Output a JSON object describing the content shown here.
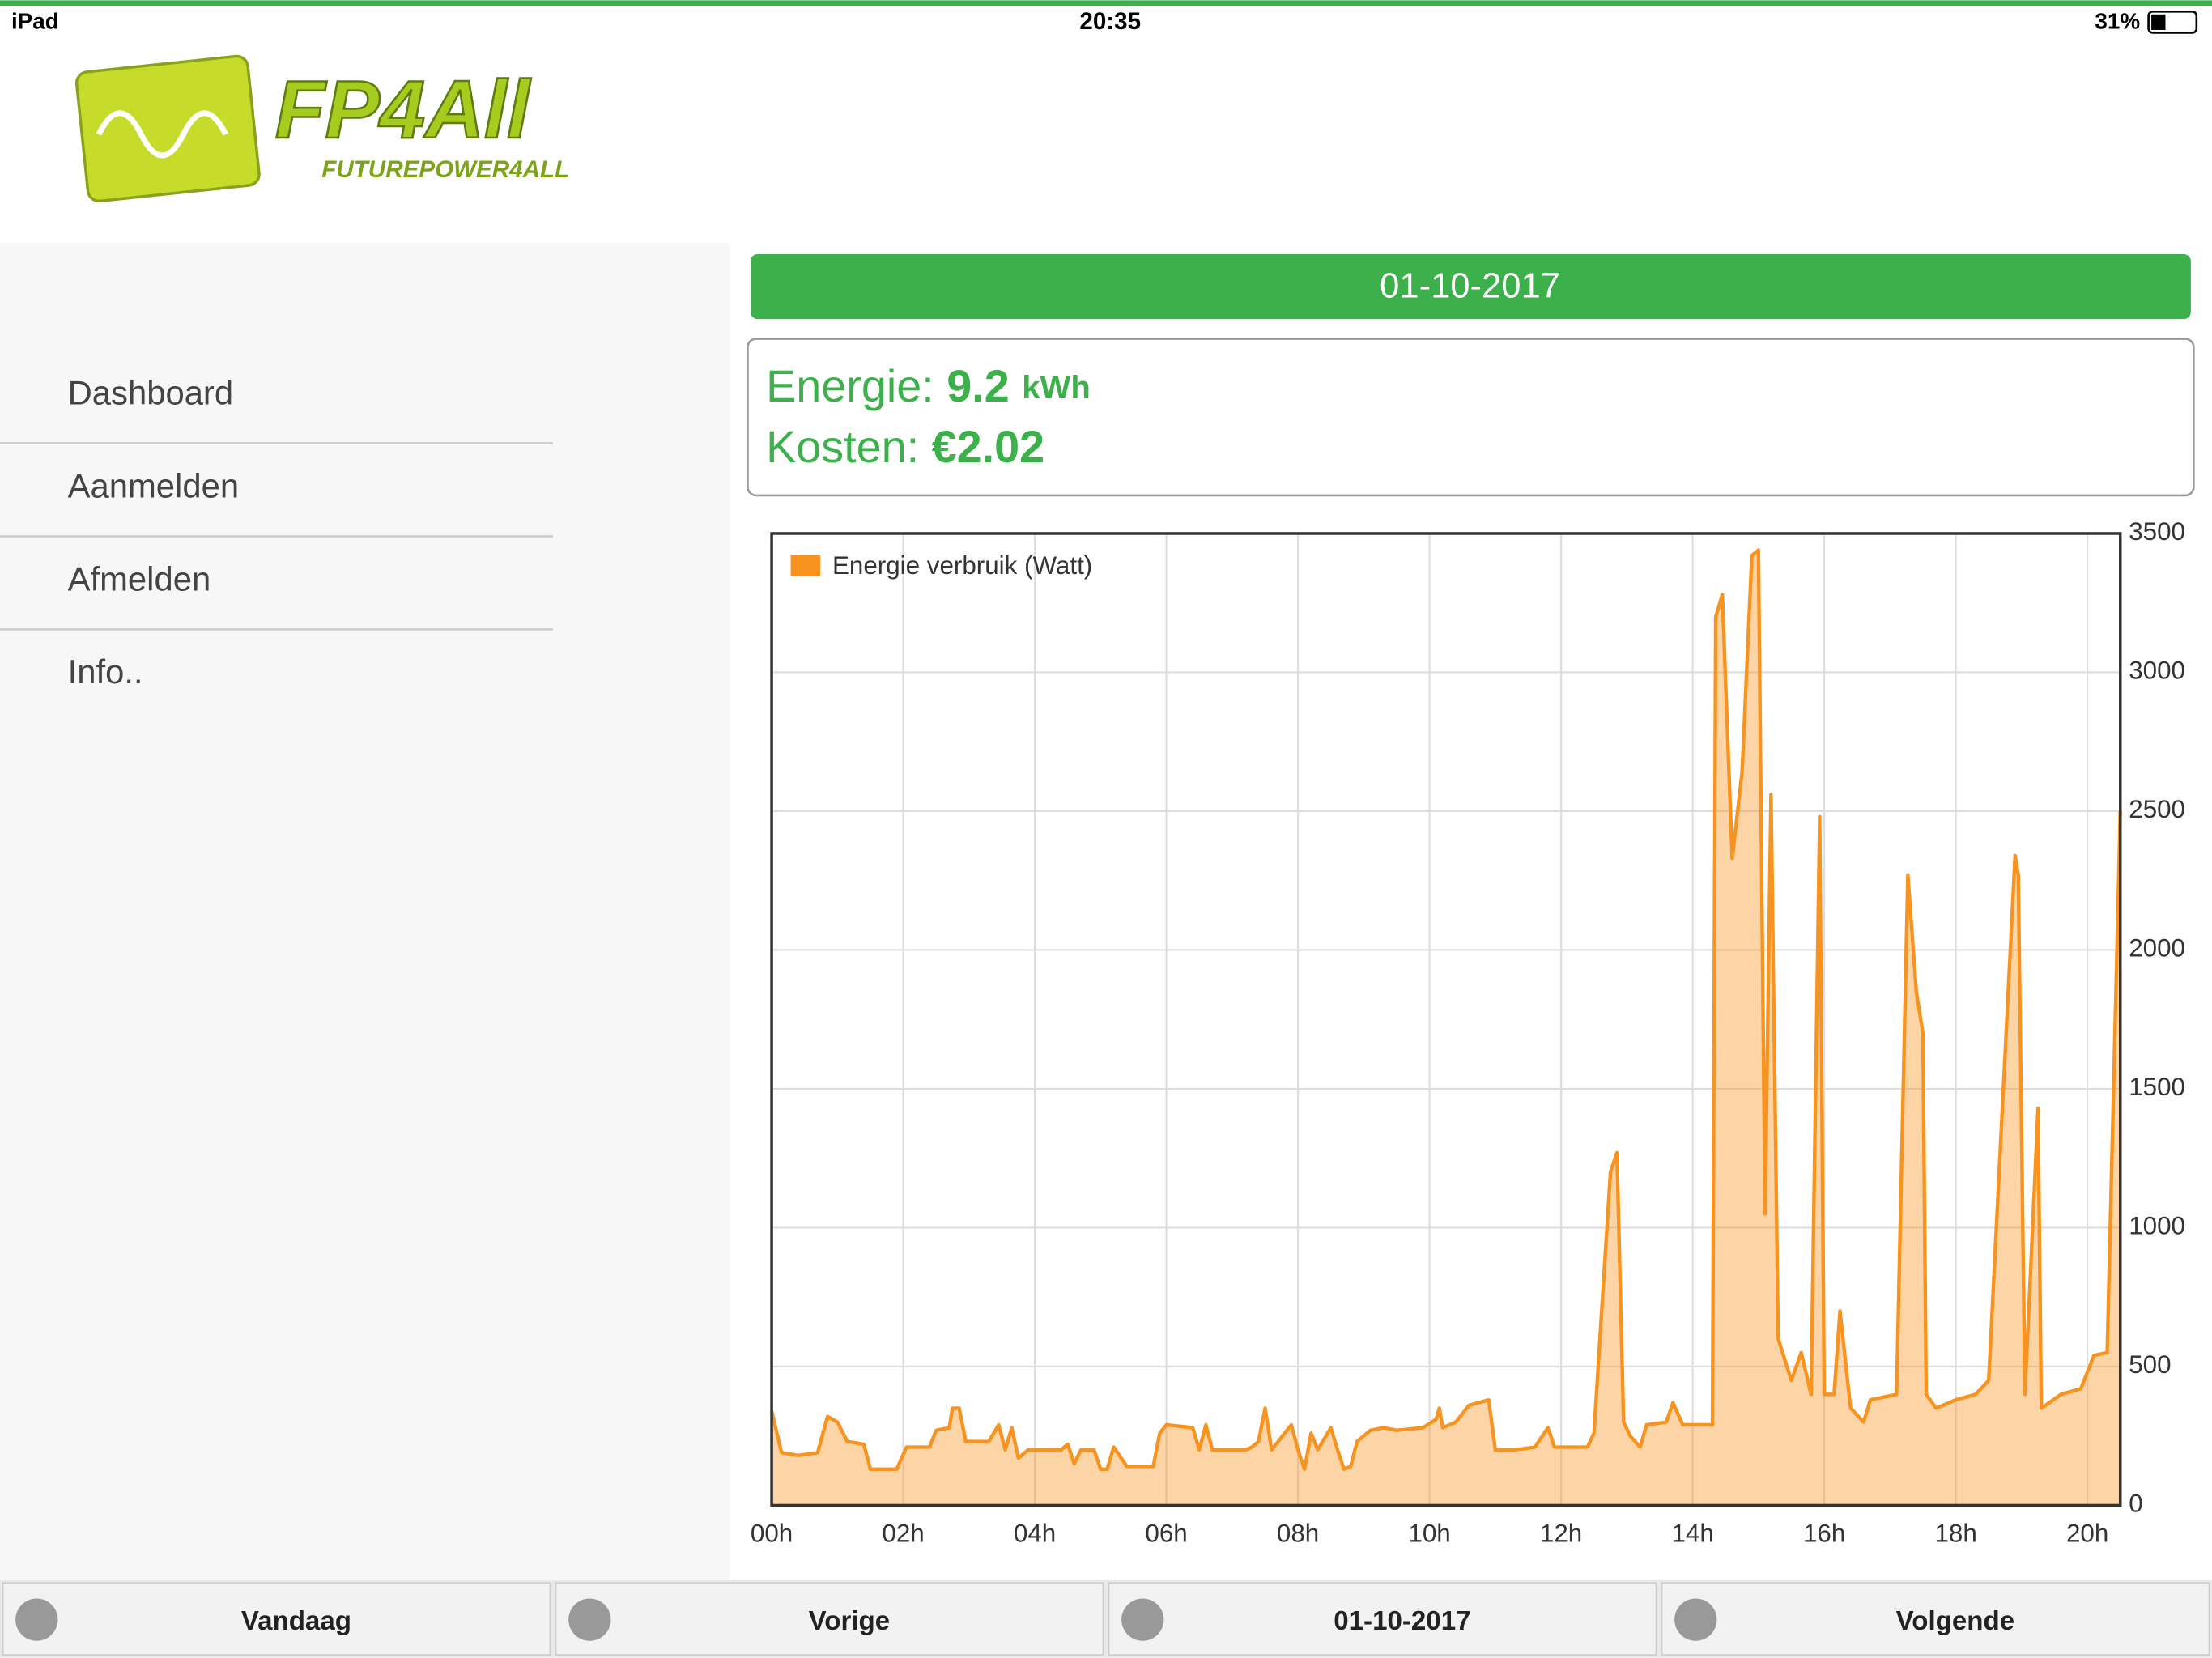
{
  "status_bar": {
    "device": "iPad",
    "time": "20:35",
    "battery": "31%"
  },
  "logo": {
    "mark": "FP4All",
    "tagline": "FUTUREPOWER4ALL"
  },
  "menu": [
    "Dashboard",
    "Aanmelden",
    "Afmelden",
    "Info.."
  ],
  "date_banner": "01-10-2017",
  "summary": {
    "energy": {
      "label": "Energie:",
      "value": "9.2",
      "unit": "kWh"
    },
    "cost": {
      "label": "Kosten:",
      "value": "€2.02"
    }
  },
  "chart_data": {
    "type": "area",
    "x": [
      0.0,
      0.15,
      0.4,
      0.7,
      0.85,
      1.0,
      1.15,
      1.4,
      1.5,
      1.9,
      2.05,
      2.4,
      2.5,
      2.7,
      2.75,
      2.85,
      2.95,
      3.3,
      3.45,
      3.55,
      3.65,
      3.75,
      3.9,
      4.4,
      4.5,
      4.6,
      4.7,
      4.9,
      5.0,
      5.1,
      5.2,
      5.4,
      5.8,
      5.9,
      6.0,
      6.4,
      6.5,
      6.6,
      6.7,
      7.2,
      7.3,
      7.4,
      7.5,
      7.6,
      7.8,
      7.9,
      8.0,
      8.1,
      8.2,
      8.3,
      8.5,
      8.6,
      8.7,
      8.8,
      8.9,
      9.1,
      9.3,
      9.5,
      9.9,
      10.1,
      10.15,
      10.2,
      10.4,
      10.6,
      10.9,
      11.0,
      11.3,
      11.6,
      11.8,
      11.9,
      12.4,
      12.5,
      12.75,
      12.85,
      12.95,
      13.05,
      13.2,
      13.3,
      13.6,
      13.7,
      13.85,
      14.3,
      14.35,
      14.45,
      14.6,
      14.75,
      14.9,
      15.0,
      15.1,
      15.19,
      15.3,
      15.5,
      15.65,
      15.8,
      15.93,
      16.0,
      16.15,
      16.24,
      16.4,
      16.6,
      16.7,
      17.1,
      17.27,
      17.4,
      17.5,
      17.55,
      17.7,
      18.0,
      18.3,
      18.5,
      18.9,
      18.95,
      19.05,
      19.25,
      19.3,
      19.6,
      19.9,
      20.1,
      20.3,
      20.5
    ],
    "series": [
      {
        "name": "Energie verbruik (Watt)",
        "color": "#f7931e",
        "values": [
          340,
          190,
          180,
          190,
          320,
          300,
          230,
          220,
          130,
          130,
          210,
          210,
          270,
          280,
          350,
          350,
          230,
          230,
          290,
          200,
          280,
          170,
          200,
          200,
          220,
          150,
          200,
          200,
          130,
          130,
          210,
          140,
          140,
          260,
          290,
          280,
          200,
          290,
          200,
          200,
          210,
          230,
          350,
          200,
          260,
          290,
          200,
          130,
          260,
          200,
          280,
          200,
          130,
          140,
          230,
          270,
          280,
          270,
          280,
          310,
          350,
          280,
          300,
          360,
          380,
          200,
          200,
          210,
          280,
          210,
          210,
          260,
          1200,
          1270,
          300,
          250,
          210,
          290,
          300,
          370,
          290,
          290,
          3200,
          3280,
          2330,
          2640,
          3420,
          3440,
          1050,
          2560,
          600,
          450,
          550,
          400,
          2480,
          400,
          400,
          700,
          350,
          300,
          380,
          400,
          2270,
          1850,
          1700,
          400,
          350,
          380,
          400,
          450,
          2340,
          2270,
          400,
          1430,
          350,
          400,
          420,
          540,
          550,
          2500
        ]
      }
    ],
    "xlim": [
      0,
      20.5
    ],
    "xticks": [
      {
        "value": 0,
        "label": "00h"
      },
      {
        "value": 2,
        "label": "02h"
      },
      {
        "value": 4,
        "label": "04h"
      },
      {
        "value": 6,
        "label": "06h"
      },
      {
        "value": 8,
        "label": "08h"
      },
      {
        "value": 10,
        "label": "10h"
      },
      {
        "value": 12,
        "label": "12h"
      },
      {
        "value": 14,
        "label": "14h"
      },
      {
        "value": 16,
        "label": "16h"
      },
      {
        "value": 18,
        "label": "18h"
      },
      {
        "value": 20,
        "label": "20h"
      }
    ],
    "ylim": [
      0,
      3500
    ],
    "yticks": [
      0,
      500,
      1000,
      1500,
      2000,
      2500,
      3000,
      3500
    ],
    "grid": true,
    "legend": "top-left"
  },
  "toolbar": [
    "Vandaag",
    "Vorige",
    "01-10-2017",
    "Volgende"
  ]
}
